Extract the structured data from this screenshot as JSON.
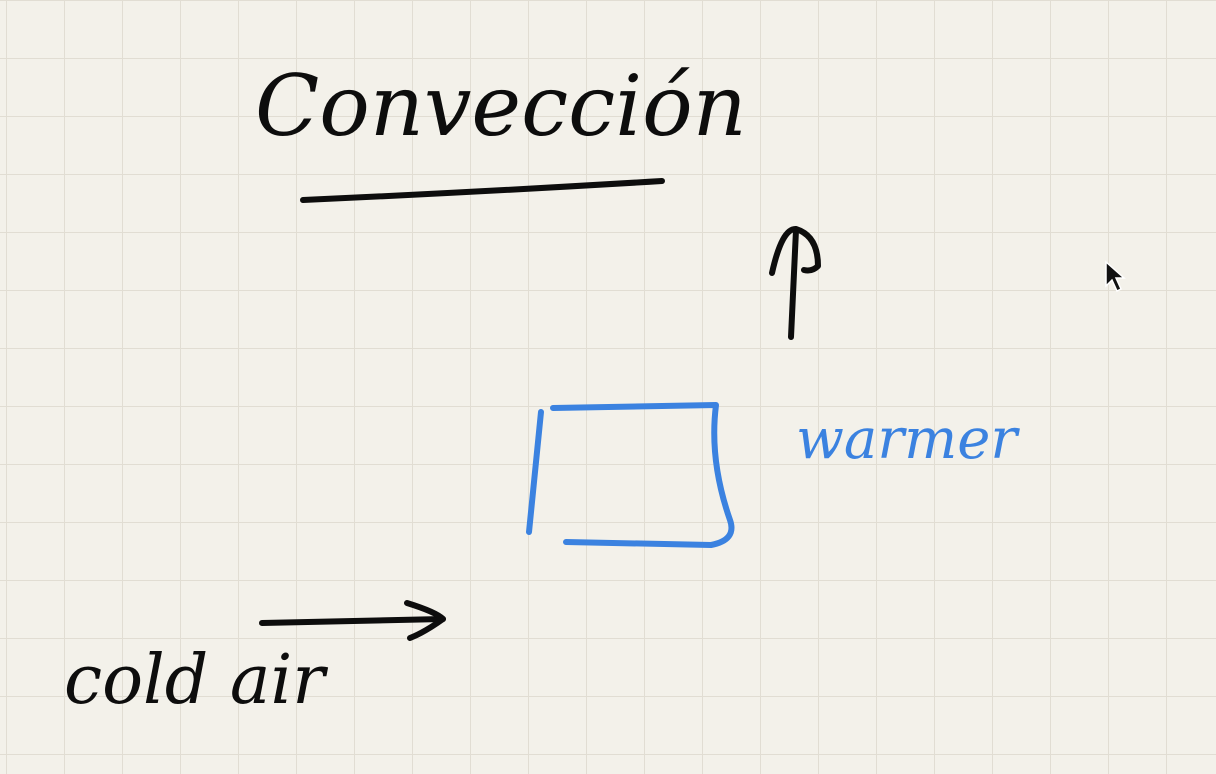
{
  "title": "Convección",
  "labels": {
    "warmer": "warmer",
    "cold_air": "cold air"
  },
  "colors": {
    "paper": "#f3f1ea",
    "grid": "#e1ddd3",
    "ink_black": "#0d0d0d",
    "ink_blue": "#3b82e0"
  },
  "icons": {
    "cursor": "mouse-pointer-icon",
    "up_arrow": "arrow-up-icon",
    "right_arrow": "arrow-right-icon"
  }
}
